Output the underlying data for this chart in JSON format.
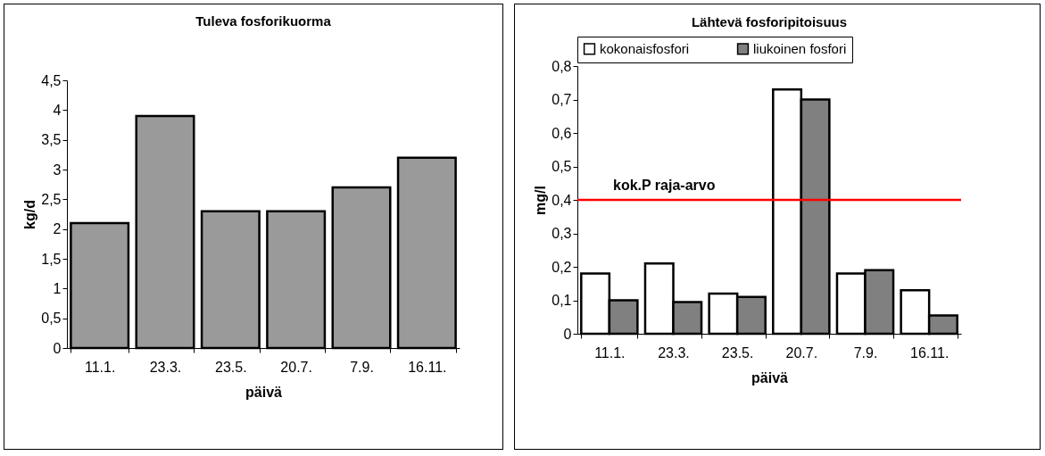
{
  "chart_data": [
    {
      "type": "bar",
      "title": "Tuleva fosforikuorma",
      "xlabel": "päivä",
      "ylabel": "kg/d",
      "categories": [
        "11.1.",
        "23.3.",
        "23.5.",
        "20.7.",
        "7.9.",
        "16.11."
      ],
      "series": [
        {
          "color": "#9a9a9a",
          "values": [
            2.1,
            3.9,
            2.3,
            2.3,
            2.7,
            3.2
          ]
        }
      ],
      "ylim": [
        0,
        4.5
      ],
      "yticks": [
        0,
        {
          "value": 0.5,
          "label": "0,5"
        },
        1,
        {
          "value": 1.5,
          "label": "1,5"
        },
        2,
        {
          "value": 2.5,
          "label": "2,5"
        },
        3,
        {
          "value": 3.5,
          "label": "3,5"
        },
        4,
        {
          "value": 4.5,
          "label": "4,5"
        }
      ],
      "grid": false,
      "legend": false
    },
    {
      "type": "bar",
      "title": "Lähtevä fosforipitoisuus",
      "xlabel": "päivä",
      "ylabel": "mg/l",
      "categories": [
        "11.1.",
        "23.3.",
        "23.5.",
        "20.7.",
        "7.9.",
        "16.11."
      ],
      "series": [
        {
          "name": "kokonaisfosfori",
          "color": "#ffffff",
          "values": [
            0.18,
            0.21,
            0.12,
            0.73,
            0.18,
            0.13
          ]
        },
        {
          "name": "liukoinen fosfori",
          "color": "#808080",
          "values": [
            0.1,
            0.095,
            0.11,
            0.7,
            0.19,
            0.055
          ]
        }
      ],
      "ylim": [
        0,
        0.8
      ],
      "yticks": [
        0,
        {
          "value": 0.1,
          "label": "0,1"
        },
        {
          "value": 0.2,
          "label": "0,2"
        },
        {
          "value": 0.3,
          "label": "0,3"
        },
        {
          "value": 0.4,
          "label": "0,4"
        },
        {
          "value": 0.5,
          "label": "0,5"
        },
        {
          "value": 0.6,
          "label": "0,6"
        },
        {
          "value": 0.7,
          "label": "0,7"
        },
        {
          "value": 0.8,
          "label": "0,8"
        }
      ],
      "ref_lines": [
        {
          "axis": "y",
          "value": 0.4,
          "label": "kok.P raja-arvo",
          "color": "#ff0000"
        }
      ],
      "grid": false,
      "legend": "top"
    }
  ]
}
